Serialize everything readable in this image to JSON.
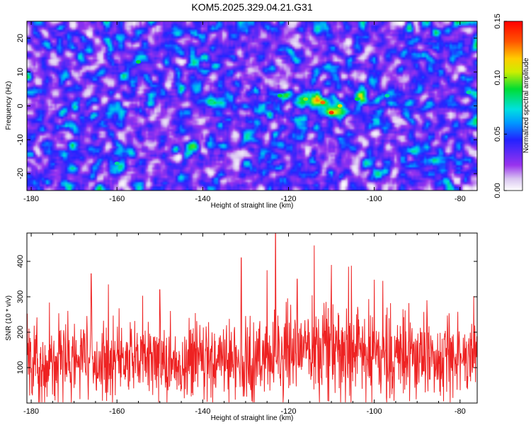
{
  "title": "KOM5.2025.329.04.21.G31",
  "chart_data": [
    {
      "type": "heatmap",
      "title": "KOM5.2025.329.04.21.G31",
      "xlabel": "Height of straight line (km)",
      "ylabel": "Frequency (Hz)",
      "xlim": [
        -181,
        -76
      ],
      "ylim": [
        -25,
        25
      ],
      "xticks": [
        -180,
        -160,
        -140,
        -120,
        -100,
        -80
      ],
      "yticks": [
        -20,
        -10,
        0,
        10,
        20
      ],
      "colorbar": {
        "label": "Normalized spectral amplitude",
        "range": [
          0.0,
          0.15
        ],
        "ticks": [
          "0.00",
          "0.05",
          "0.10",
          "0.15"
        ],
        "colormap": "white-purple-blue-cyan-green-yellow-red"
      },
      "hotspots": [
        {
          "x": -122,
          "y": 3,
          "value": 0.09
        },
        {
          "x": -116,
          "y": 2,
          "value": 0.1
        },
        {
          "x": -112,
          "y": 1,
          "value": 0.13
        },
        {
          "x": -110,
          "y": -2,
          "value": 0.14
        },
        {
          "x": -108,
          "y": 0,
          "value": 0.11
        },
        {
          "x": -104,
          "y": 2,
          "value": 0.09
        },
        {
          "x": -97,
          "y": 3,
          "value": 0.08
        },
        {
          "x": -155,
          "y": 13,
          "value": 0.09
        },
        {
          "x": -160,
          "y": -17,
          "value": 0.08
        },
        {
          "x": -138,
          "y": 1,
          "value": 0.08
        },
        {
          "x": -78,
          "y": 4,
          "value": 0.08
        }
      ]
    },
    {
      "type": "line",
      "xlabel": "Height of straight line (km)",
      "ylabel": "SNR (10 * v/v)",
      "xlim": [
        -181,
        -76
      ],
      "ylim": [
        0,
        480
      ],
      "xticks": [
        -180,
        -160,
        -140,
        -120,
        -100,
        -80
      ],
      "yticks": [
        100,
        200,
        300,
        400
      ],
      "series": [
        {
          "name": "SNR",
          "color": "#ee2222",
          "mean": 120,
          "std": 55
        }
      ],
      "peaks": [
        {
          "x": -123,
          "y": 478
        },
        {
          "x": -114,
          "y": 445
        },
        {
          "x": -106,
          "y": 385
        },
        {
          "x": -110,
          "y": 390
        },
        {
          "x": -125,
          "y": 375
        },
        {
          "x": -131,
          "y": 410
        },
        {
          "x": -166,
          "y": 365
        },
        {
          "x": -162,
          "y": 335
        },
        {
          "x": -150,
          "y": 320
        },
        {
          "x": -118,
          "y": 350
        },
        {
          "x": -98,
          "y": 345
        }
      ]
    }
  ]
}
